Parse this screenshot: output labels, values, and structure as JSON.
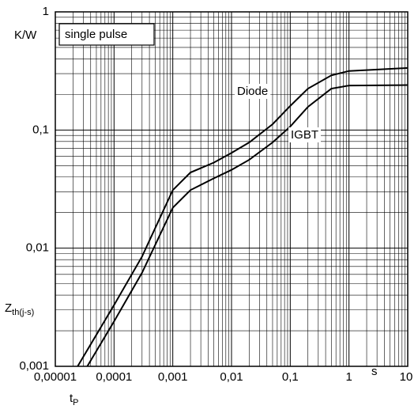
{
  "chart_data": {
    "type": "line",
    "annotation": "single pulse",
    "ylabel": "Z",
    "ylabel_sub": "th(j-s)",
    "yunit": "K/W",
    "xlabel": "t",
    "xlabel_sub": "P",
    "xunit": "s",
    "xscale": "log",
    "yscale": "log",
    "grid": true,
    "minor_grid": true,
    "xlim": [
      1e-05,
      10
    ],
    "ylim": [
      0.001,
      1
    ],
    "xticks": [
      {
        "value": 1e-05,
        "label": "0,00001"
      },
      {
        "value": 0.0001,
        "label": "0,0001"
      },
      {
        "value": 0.001,
        "label": "0,001"
      },
      {
        "value": 0.01,
        "label": "0,01"
      },
      {
        "value": 0.1,
        "label": "0,1"
      },
      1,
      10
    ],
    "yticks": [
      {
        "value": 0.001,
        "label": "0,001"
      },
      {
        "value": 0.01,
        "label": "0,01"
      },
      {
        "value": 0.1,
        "label": "0,1"
      },
      1
    ],
    "series": [
      {
        "name": "Diode",
        "color": "#000000",
        "x": [
          2.4e-05,
          0.0001,
          0.0003,
          0.001,
          0.002,
          0.005,
          0.01,
          0.02,
          0.05,
          0.1,
          0.2,
          0.5,
          1,
          10
        ],
        "values": [
          0.001,
          0.0033,
          0.0085,
          0.031,
          0.0437,
          0.053,
          0.064,
          0.0785,
          0.112,
          0.16,
          0.224,
          0.29,
          0.316,
          0.335
        ]
      },
      {
        "name": "IGBT",
        "color": "#000000",
        "x": [
          3.5e-05,
          0.0001,
          0.0003,
          0.001,
          0.002,
          0.005,
          0.01,
          0.02,
          0.05,
          0.1,
          0.2,
          0.5,
          1,
          10
        ],
        "values": [
          0.001,
          0.0024,
          0.0062,
          0.022,
          0.031,
          0.039,
          0.046,
          0.056,
          0.0785,
          0.107,
          0.157,
          0.224,
          0.238,
          0.24
        ]
      }
    ]
  }
}
